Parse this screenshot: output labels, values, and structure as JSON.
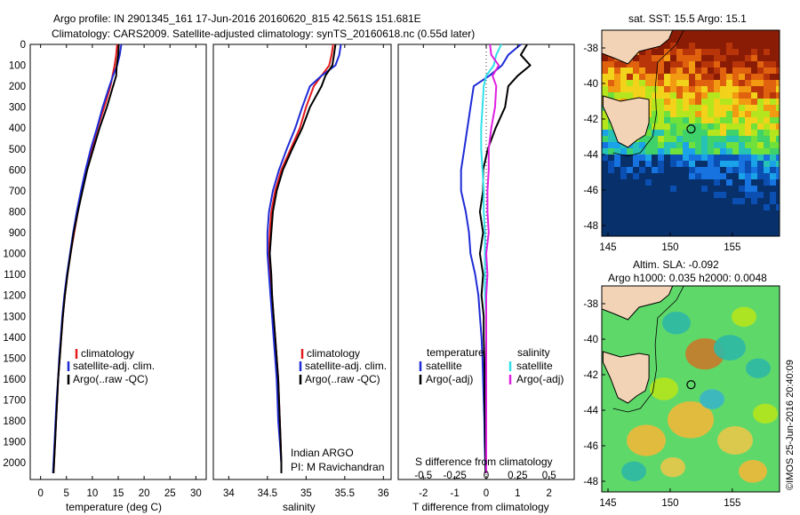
{
  "header": {
    "line1": "Argo profile: IN 2901345_161 17-Jun-2016 20160620_815 42.561S 151.681E",
    "line2": "Climatology: CARS2009. Satellite-adjusted climatology: synTS_20160618.nc (0.55d later)"
  },
  "credit": "©IMOS 25-Jun-2016 20:40:09",
  "colors": {
    "red": "#e41a1c",
    "blue": "#1f2bd6",
    "black": "#000000",
    "cyan": "#30e0e8",
    "magenta": "#e020e0"
  },
  "panels": {
    "temperature": {
      "xlabel": "temperature (deg C)",
      "xticks": [
        "0",
        "5",
        "10",
        "15",
        "20",
        "25",
        "30"
      ],
      "legend": [
        "climatology",
        "satellite-adj. clim.",
        "Argo(..raw -QC)"
      ]
    },
    "salinity": {
      "xlabel": "salinity",
      "xticks": [
        "34",
        "34.5",
        "35",
        "35.5",
        "36"
      ],
      "legend": [
        "climatology",
        "satellite-adj. clim.",
        "Argo(..raw -QC)"
      ],
      "note1": "Indian ARGO",
      "note2": "PI: M Ravichandran"
    },
    "difference": {
      "xlabel": "T difference from climatology",
      "top_label": "S difference from climatology",
      "xticks": [
        "-2",
        "-1",
        "0",
        "1",
        "2"
      ],
      "sticks": [
        "-0.5",
        "-0.25",
        "0",
        "0.25",
        "0.5"
      ],
      "legend_temperature": "temperature",
      "legend_salinity": "salinity",
      "legend_t_items": [
        "satellite",
        "Argo(-adj)"
      ],
      "legend_s_items": [
        "satellite",
        "Argo(-adj)"
      ]
    },
    "depth_ticks": [
      "0",
      "100",
      "200",
      "300",
      "400",
      "500",
      "600",
      "700",
      "800",
      "900",
      "1000",
      "1100",
      "1200",
      "1300",
      "1400",
      "1500",
      "1600",
      "1700",
      "1800",
      "1900",
      "2000"
    ]
  },
  "maps": {
    "sst_title": "sat. SST: 15.5 Argo: 15.1",
    "sla_title1": "Altim. SLA: -0.092",
    "sla_title2": "Argo h1000: 0.035 h2000: 0.0048",
    "lat_ticks": [
      "-38",
      "-40",
      "-42",
      "-44",
      "-46",
      "-48"
    ],
    "lon_ticks": [
      "145",
      "150",
      "155"
    ]
  },
  "chart_data": [
    {
      "type": "line",
      "title": "",
      "xlabel": "temperature (deg C)",
      "ylabel": "",
      "xlim": [
        -2,
        32
      ],
      "ylim": [
        2080,
        0
      ],
      "y_depth": [
        0,
        50,
        100,
        150,
        200,
        300,
        400,
        500,
        600,
        700,
        800,
        900,
        1000,
        1100,
        1200,
        1300,
        1400,
        1500,
        1600,
        1700,
        1800,
        1900,
        2000,
        2050
      ],
      "series": [
        {
          "name": "climatology",
          "color": "red",
          "x": [
            14.8,
            14.6,
            14.3,
            13.9,
            13.5,
            12.3,
            11.0,
            9.9,
            8.9,
            8.0,
            7.2,
            6.5,
            5.8,
            5.2,
            4.7,
            4.3,
            4.0,
            3.7,
            3.4,
            3.2,
            3.0,
            2.8,
            2.6,
            2.5
          ]
        },
        {
          "name": "satellite-adj. clim.",
          "color": "blue",
          "x": [
            15.6,
            15.3,
            14.8,
            14.0,
            13.3,
            12.0,
            10.9,
            9.7,
            8.7,
            7.8,
            7.0,
            6.3,
            5.7,
            5.1,
            4.6,
            4.2,
            3.9,
            3.6,
            3.4,
            3.1,
            2.9,
            2.7,
            2.5,
            2.4
          ]
        },
        {
          "name": "Argo(..raw -QC)",
          "color": "black",
          "x": [
            15.1,
            15.0,
            14.7,
            14.6,
            14.0,
            12.8,
            11.4,
            10.2,
            9.0,
            8.1,
            7.2,
            6.4,
            5.8,
            5.2,
            4.7,
            4.3,
            4.0,
            3.7,
            3.4,
            3.2,
            3.0,
            2.8,
            2.6,
            2.5
          ]
        }
      ]
    },
    {
      "type": "line",
      "title": "",
      "xlabel": "salinity",
      "ylabel": "",
      "xlim": [
        33.8,
        36.1
      ],
      "ylim": [
        2080,
        0
      ],
      "y_depth": [
        0,
        50,
        100,
        150,
        200,
        300,
        400,
        500,
        600,
        700,
        800,
        900,
        1000,
        1100,
        1200,
        1300,
        1400,
        1500,
        1600,
        1700,
        1800,
        1900,
        2000,
        2050
      ],
      "series": [
        {
          "name": "climatology",
          "color": "red",
          "x": [
            35.35,
            35.33,
            35.3,
            35.2,
            35.1,
            35.0,
            34.92,
            34.8,
            34.68,
            34.6,
            34.55,
            34.53,
            34.52,
            34.54,
            34.56,
            34.58,
            34.6,
            34.62,
            34.64,
            34.65,
            34.66,
            34.67,
            34.68,
            34.68
          ]
        },
        {
          "name": "satellite-adj. clim.",
          "color": "blue",
          "x": [
            35.45,
            35.43,
            35.38,
            35.2,
            35.05,
            34.95,
            34.86,
            34.75,
            34.65,
            34.57,
            34.52,
            34.5,
            34.5,
            34.52,
            34.54,
            34.56,
            34.58,
            34.6,
            34.62,
            34.63,
            34.64,
            34.66,
            34.68,
            34.68
          ]
        },
        {
          "name": "Argo(..raw -QC)",
          "color": "black",
          "x": [
            35.38,
            35.36,
            35.34,
            35.25,
            35.2,
            35.05,
            34.95,
            34.82,
            34.7,
            34.62,
            34.57,
            34.55,
            34.53,
            34.55,
            34.56,
            34.58,
            34.6,
            34.62,
            34.64,
            34.65,
            34.66,
            34.67,
            34.68,
            34.68
          ]
        }
      ]
    },
    {
      "type": "line",
      "title": "",
      "xlabel": "T difference from climatology",
      "ylabel": "",
      "xlim": [
        -2.8,
        2.8
      ],
      "ylim": [
        2080,
        0
      ],
      "y_depth": [
        0,
        50,
        100,
        150,
        200,
        300,
        400,
        500,
        600,
        700,
        800,
        900,
        1000,
        1100,
        1200,
        1300,
        1400,
        1500,
        1600,
        1700,
        1800,
        1900,
        2000,
        2050
      ],
      "series": [
        {
          "name": "satellite",
          "group": "temperature",
          "color": "blue",
          "x": [
            1.1,
            0.7,
            0.5,
            0.1,
            -0.4,
            -0.5,
            -0.6,
            -0.7,
            -0.8,
            -0.8,
            -0.65,
            -0.55,
            -0.5,
            -0.35,
            -0.25,
            -0.2,
            -0.15,
            -0.12,
            -0.1,
            -0.08,
            -0.06,
            -0.05,
            -0.03,
            -0.02
          ]
        },
        {
          "name": "Argo(-adj)",
          "group": "temperature",
          "color": "black",
          "x": [
            1.3,
            1.1,
            1.4,
            1.0,
            0.7,
            0.6,
            0.3,
            0.05,
            -0.1,
            -0.1,
            -0.2,
            -0.1,
            -0.2,
            -0.1,
            -0.15,
            -0.08,
            -0.08,
            -0.06,
            -0.05,
            -0.05,
            -0.04,
            -0.03,
            -0.02,
            -0.02
          ]
        }
      ]
    },
    {
      "type": "line",
      "title": "",
      "xlabel": "S difference from climatology",
      "ylabel": "",
      "xlim": [
        -0.7,
        0.7
      ],
      "ylim": [
        2080,
        0
      ],
      "y_depth": [
        0,
        50,
        100,
        150,
        200,
        300,
        400,
        500,
        600,
        700,
        800,
        900,
        1000,
        1100,
        1200,
        1300,
        1400,
        1500,
        1600,
        1700,
        1800,
        1900,
        2000,
        2050
      ],
      "series": [
        {
          "name": "satellite",
          "group": "salinity",
          "color": "cyan",
          "x": [
            0.12,
            0.08,
            0.06,
            0.0,
            -0.02,
            -0.03,
            -0.04,
            -0.04,
            -0.03,
            -0.02,
            -0.02,
            -0.01,
            -0.01,
            -0.01,
            -0.01,
            0.0,
            0.0,
            0.0,
            0.0,
            0.0,
            0.0,
            0.0,
            0.0,
            0.0
          ]
        },
        {
          "name": "Argo(-adj)",
          "group": "salinity",
          "color": "magenta",
          "x": [
            0.03,
            0.04,
            0.1,
            0.05,
            0.08,
            0.07,
            0.04,
            0.02,
            0.02,
            0.01,
            0.01,
            0.02,
            0.0,
            0.01,
            0.0,
            0.0,
            0.0,
            0.0,
            0.0,
            0.0,
            0.0,
            0.0,
            0.0,
            0.0
          ]
        }
      ]
    }
  ]
}
